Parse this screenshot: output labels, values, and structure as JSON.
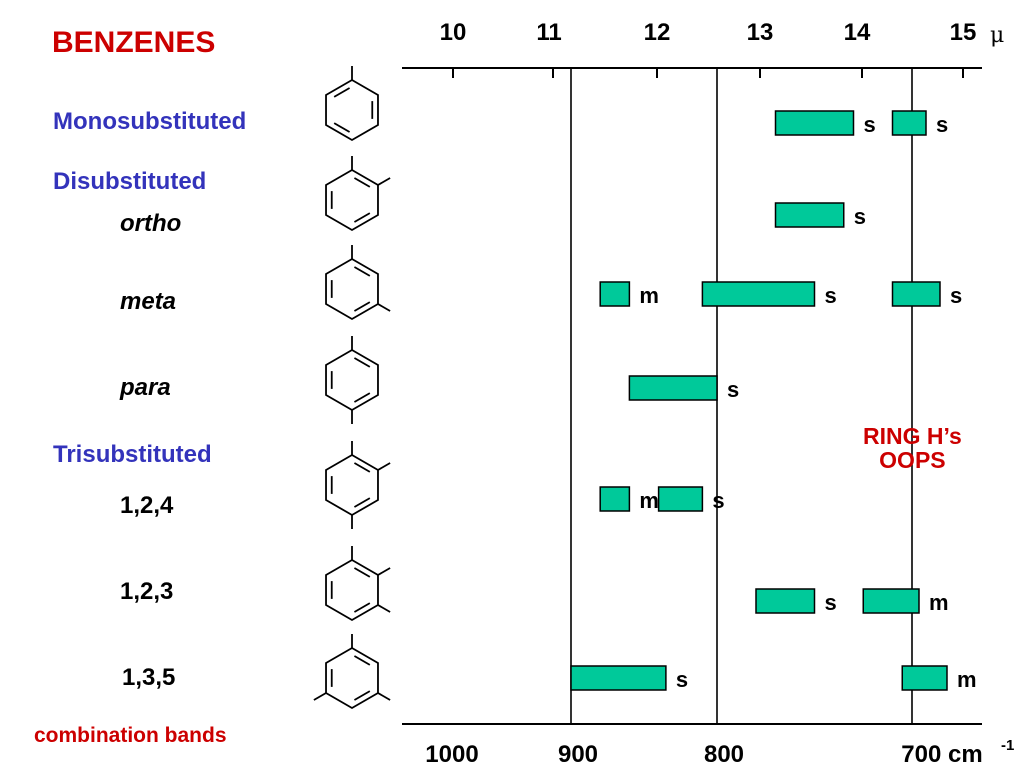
{
  "title": "BENZENES",
  "sections": {
    "mono": "Monosubstituted",
    "di": "Disubstituted",
    "tri": "Trisubstituted"
  },
  "compounds": {
    "ortho": "ortho",
    "meta": "meta",
    "para": "para",
    "t124": "1,2,4",
    "t123": "1,2,3",
    "t135": "1,3,5"
  },
  "footer_label": "combination bands",
  "annotation": {
    "line1": "RING H’s",
    "line2": "OOPS"
  },
  "colors": {
    "band_fill": "#00c99a",
    "title": "#cc0000",
    "section": "#3333bb"
  },
  "chart_data": {
    "type": "range-bar",
    "top_axis": {
      "unit": "μ",
      "ticks": [
        10,
        11,
        12,
        13,
        14,
        15
      ]
    },
    "bottom_axis": {
      "unit": "cm-1",
      "ticks": [
        1000,
        900,
        800,
        700
      ],
      "tick_labels": [
        "1000",
        "900",
        "800",
        "700 cm"
      ]
    },
    "reference_lines_cm": [
      890,
      790,
      700
    ],
    "rows": [
      {
        "name": "mono",
        "bands": [
          {
            "from": 770,
            "to": 730,
            "intensity": "s"
          },
          {
            "from": 710,
            "to": 690,
            "intensity": "s"
          }
        ]
      },
      {
        "name": "ortho",
        "bands": [
          {
            "from": 770,
            "to": 735,
            "intensity": "s"
          }
        ]
      },
      {
        "name": "meta",
        "bands": [
          {
            "from": 880,
            "to": 860,
            "intensity": "m"
          },
          {
            "from": 810,
            "to": 750,
            "intensity": "s"
          },
          {
            "from": 710,
            "to": 680,
            "intensity": "s"
          }
        ]
      },
      {
        "name": "para",
        "bands": [
          {
            "from": 860,
            "to": 800,
            "intensity": "s"
          }
        ]
      },
      {
        "name": "t124",
        "bands": [
          {
            "from": 880,
            "to": 860,
            "intensity": "m"
          },
          {
            "from": 840,
            "to": 810,
            "intensity": "s"
          }
        ]
      },
      {
        "name": "t123",
        "bands": [
          {
            "from": 780,
            "to": 750,
            "intensity": "s"
          },
          {
            "from": 725,
            "to": 695,
            "intensity": "m"
          }
        ]
      },
      {
        "name": "t135",
        "bands": [
          {
            "from": 900,
            "to": 835,
            "intensity": "s"
          },
          {
            "from": 705,
            "to": 675,
            "intensity": "m"
          }
        ]
      }
    ]
  }
}
